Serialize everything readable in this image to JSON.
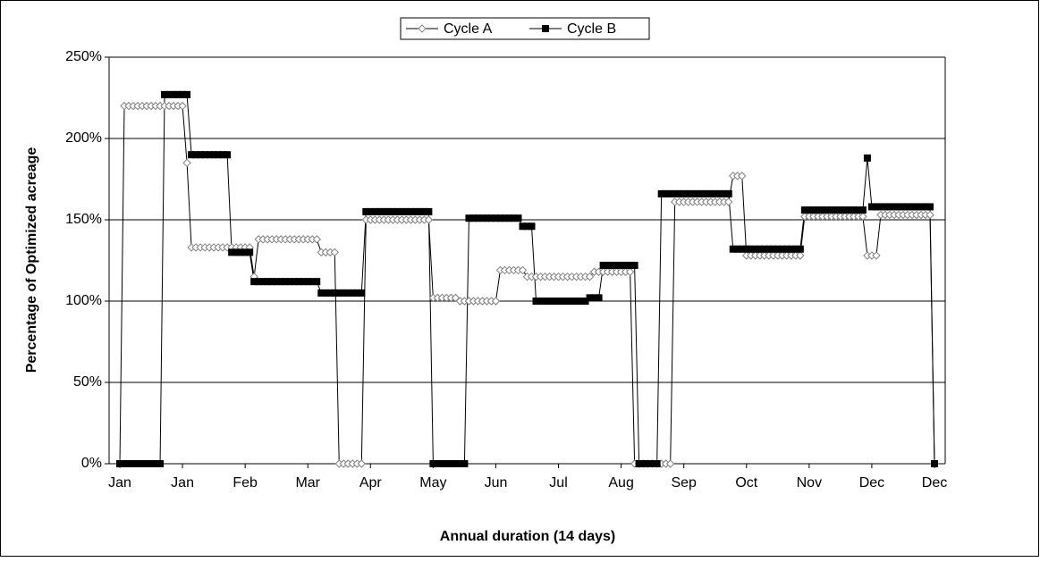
{
  "chart_data": {
    "type": "line",
    "xlabel": "Annual duration (14 days)",
    "ylabel": "Percentage of Optimized acreage",
    "categories": [
      "Jan",
      null,
      null,
      null,
      null,
      null,
      null,
      null,
      null,
      null,
      null,
      null,
      null,
      null,
      "Jan",
      null,
      null,
      null,
      null,
      null,
      null,
      null,
      null,
      null,
      null,
      null,
      null,
      null,
      "Feb",
      null,
      null,
      null,
      null,
      null,
      null,
      null,
      null,
      null,
      null,
      null,
      null,
      null,
      "Mar",
      null,
      null,
      null,
      null,
      null,
      null,
      null,
      null,
      null,
      null,
      null,
      null,
      null,
      "Apr",
      null,
      null,
      null,
      null,
      null,
      null,
      null,
      null,
      null,
      null,
      null,
      null,
      null,
      "May",
      null,
      null,
      null,
      null,
      null,
      null,
      null,
      null,
      null,
      null,
      null,
      null,
      null,
      "Jun",
      null,
      null,
      null,
      null,
      null,
      null,
      null,
      null,
      null,
      null,
      null,
      null,
      null,
      "Jul",
      null,
      null,
      null,
      null,
      null,
      null,
      null,
      null,
      null,
      null,
      null,
      null,
      null,
      "Aug",
      null,
      null,
      null,
      null,
      null,
      null,
      null,
      null,
      null,
      null,
      null,
      null,
      null,
      "Sep",
      null,
      null,
      null,
      null,
      null,
      null,
      null,
      null,
      null,
      null,
      null,
      null,
      null,
      "Oct",
      null,
      null,
      null,
      null,
      null,
      null,
      null,
      null,
      null,
      null,
      null,
      null,
      null,
      "Nov",
      null,
      null,
      null,
      null,
      null,
      null,
      null,
      null,
      null,
      null,
      null,
      null,
      null,
      "Dec",
      null,
      null,
      null,
      null,
      null,
      null,
      null,
      null,
      null,
      null,
      null,
      null,
      null,
      "Dec"
    ],
    "series": [
      {
        "name": "Cycle A",
        "color": "#d0d0d0",
        "marker": "diamond",
        "values": [
          0,
          220,
          220,
          220,
          220,
          220,
          220,
          220,
          220,
          220,
          220,
          220,
          220,
          220,
          220,
          185,
          133,
          133,
          133,
          133,
          133,
          133,
          133,
          133,
          133,
          133,
          133,
          133,
          133,
          133,
          115,
          138,
          138,
          138,
          138,
          138,
          138,
          138,
          138,
          138,
          138,
          138,
          138,
          138,
          138,
          130,
          130,
          130,
          130,
          0,
          0,
          0,
          0,
          0,
          0,
          150,
          150,
          150,
          150,
          150,
          150,
          150,
          150,
          150,
          150,
          150,
          150,
          150,
          150,
          150,
          102,
          102,
          102,
          102,
          102,
          102,
          100,
          100,
          100,
          100,
          100,
          100,
          100,
          100,
          100,
          119,
          119,
          119,
          119,
          119,
          119,
          115,
          115,
          115,
          115,
          115,
          115,
          115,
          115,
          115,
          115,
          115,
          115,
          115,
          115,
          115,
          118,
          118,
          118,
          118,
          118,
          118,
          118,
          118,
          118,
          0,
          0,
          0,
          0,
          0,
          0,
          0,
          0,
          0,
          161,
          161,
          161,
          161,
          161,
          161,
          161,
          161,
          161,
          161,
          161,
          161,
          161,
          177,
          177,
          177,
          128,
          128,
          128,
          128,
          128,
          128,
          128,
          128,
          128,
          128,
          128,
          128,
          128,
          152,
          152,
          152,
          152,
          152,
          152,
          152,
          152,
          152,
          152,
          152,
          152,
          152,
          152,
          128,
          128,
          128,
          153,
          153,
          153,
          153,
          153,
          153,
          153,
          153,
          153,
          153,
          153,
          153,
          0
        ]
      },
      {
        "name": "Cycle B",
        "color": "#000000",
        "marker": "square",
        "values": [
          0,
          0,
          0,
          0,
          0,
          0,
          0,
          0,
          0,
          0,
          227,
          227,
          227,
          227,
          227,
          227,
          190,
          190,
          190,
          190,
          190,
          190,
          190,
          190,
          190,
          130,
          130,
          130,
          130,
          130,
          112,
          112,
          112,
          112,
          112,
          112,
          112,
          112,
          112,
          112,
          112,
          112,
          112,
          112,
          112,
          105,
          105,
          105,
          105,
          105,
          105,
          105,
          105,
          105,
          105,
          155,
          155,
          155,
          155,
          155,
          155,
          155,
          155,
          155,
          155,
          155,
          155,
          155,
          155,
          155,
          0,
          0,
          0,
          0,
          0,
          0,
          0,
          0,
          151,
          151,
          151,
          151,
          151,
          151,
          151,
          151,
          151,
          151,
          151,
          151,
          146,
          146,
          146,
          100,
          100,
          100,
          100,
          100,
          100,
          100,
          100,
          100,
          100,
          100,
          100,
          102,
          102,
          102,
          122,
          122,
          122,
          122,
          122,
          122,
          122,
          122,
          0,
          0,
          0,
          0,
          0,
          166,
          166,
          166,
          166,
          166,
          166,
          166,
          166,
          166,
          166,
          166,
          166,
          166,
          166,
          166,
          166,
          132,
          132,
          132,
          132,
          132,
          132,
          132,
          132,
          132,
          132,
          132,
          132,
          132,
          132,
          132,
          132,
          156,
          156,
          156,
          156,
          156,
          156,
          156,
          156,
          156,
          156,
          156,
          156,
          156,
          156,
          188,
          158,
          158,
          158,
          158,
          158,
          158,
          158,
          158,
          158,
          158,
          158,
          158,
          158,
          158,
          0
        ]
      }
    ],
    "ylim": [
      0,
      250
    ],
    "yticks": [
      {
        "value": 0,
        "label": "0%"
      },
      {
        "value": 50,
        "label": "50%"
      },
      {
        "value": 100,
        "label": "100%"
      },
      {
        "value": 150,
        "label": "150%"
      },
      {
        "value": 200,
        "label": "200%"
      },
      {
        "value": 250,
        "label": "250%"
      }
    ],
    "grid": true,
    "legend": "top"
  }
}
